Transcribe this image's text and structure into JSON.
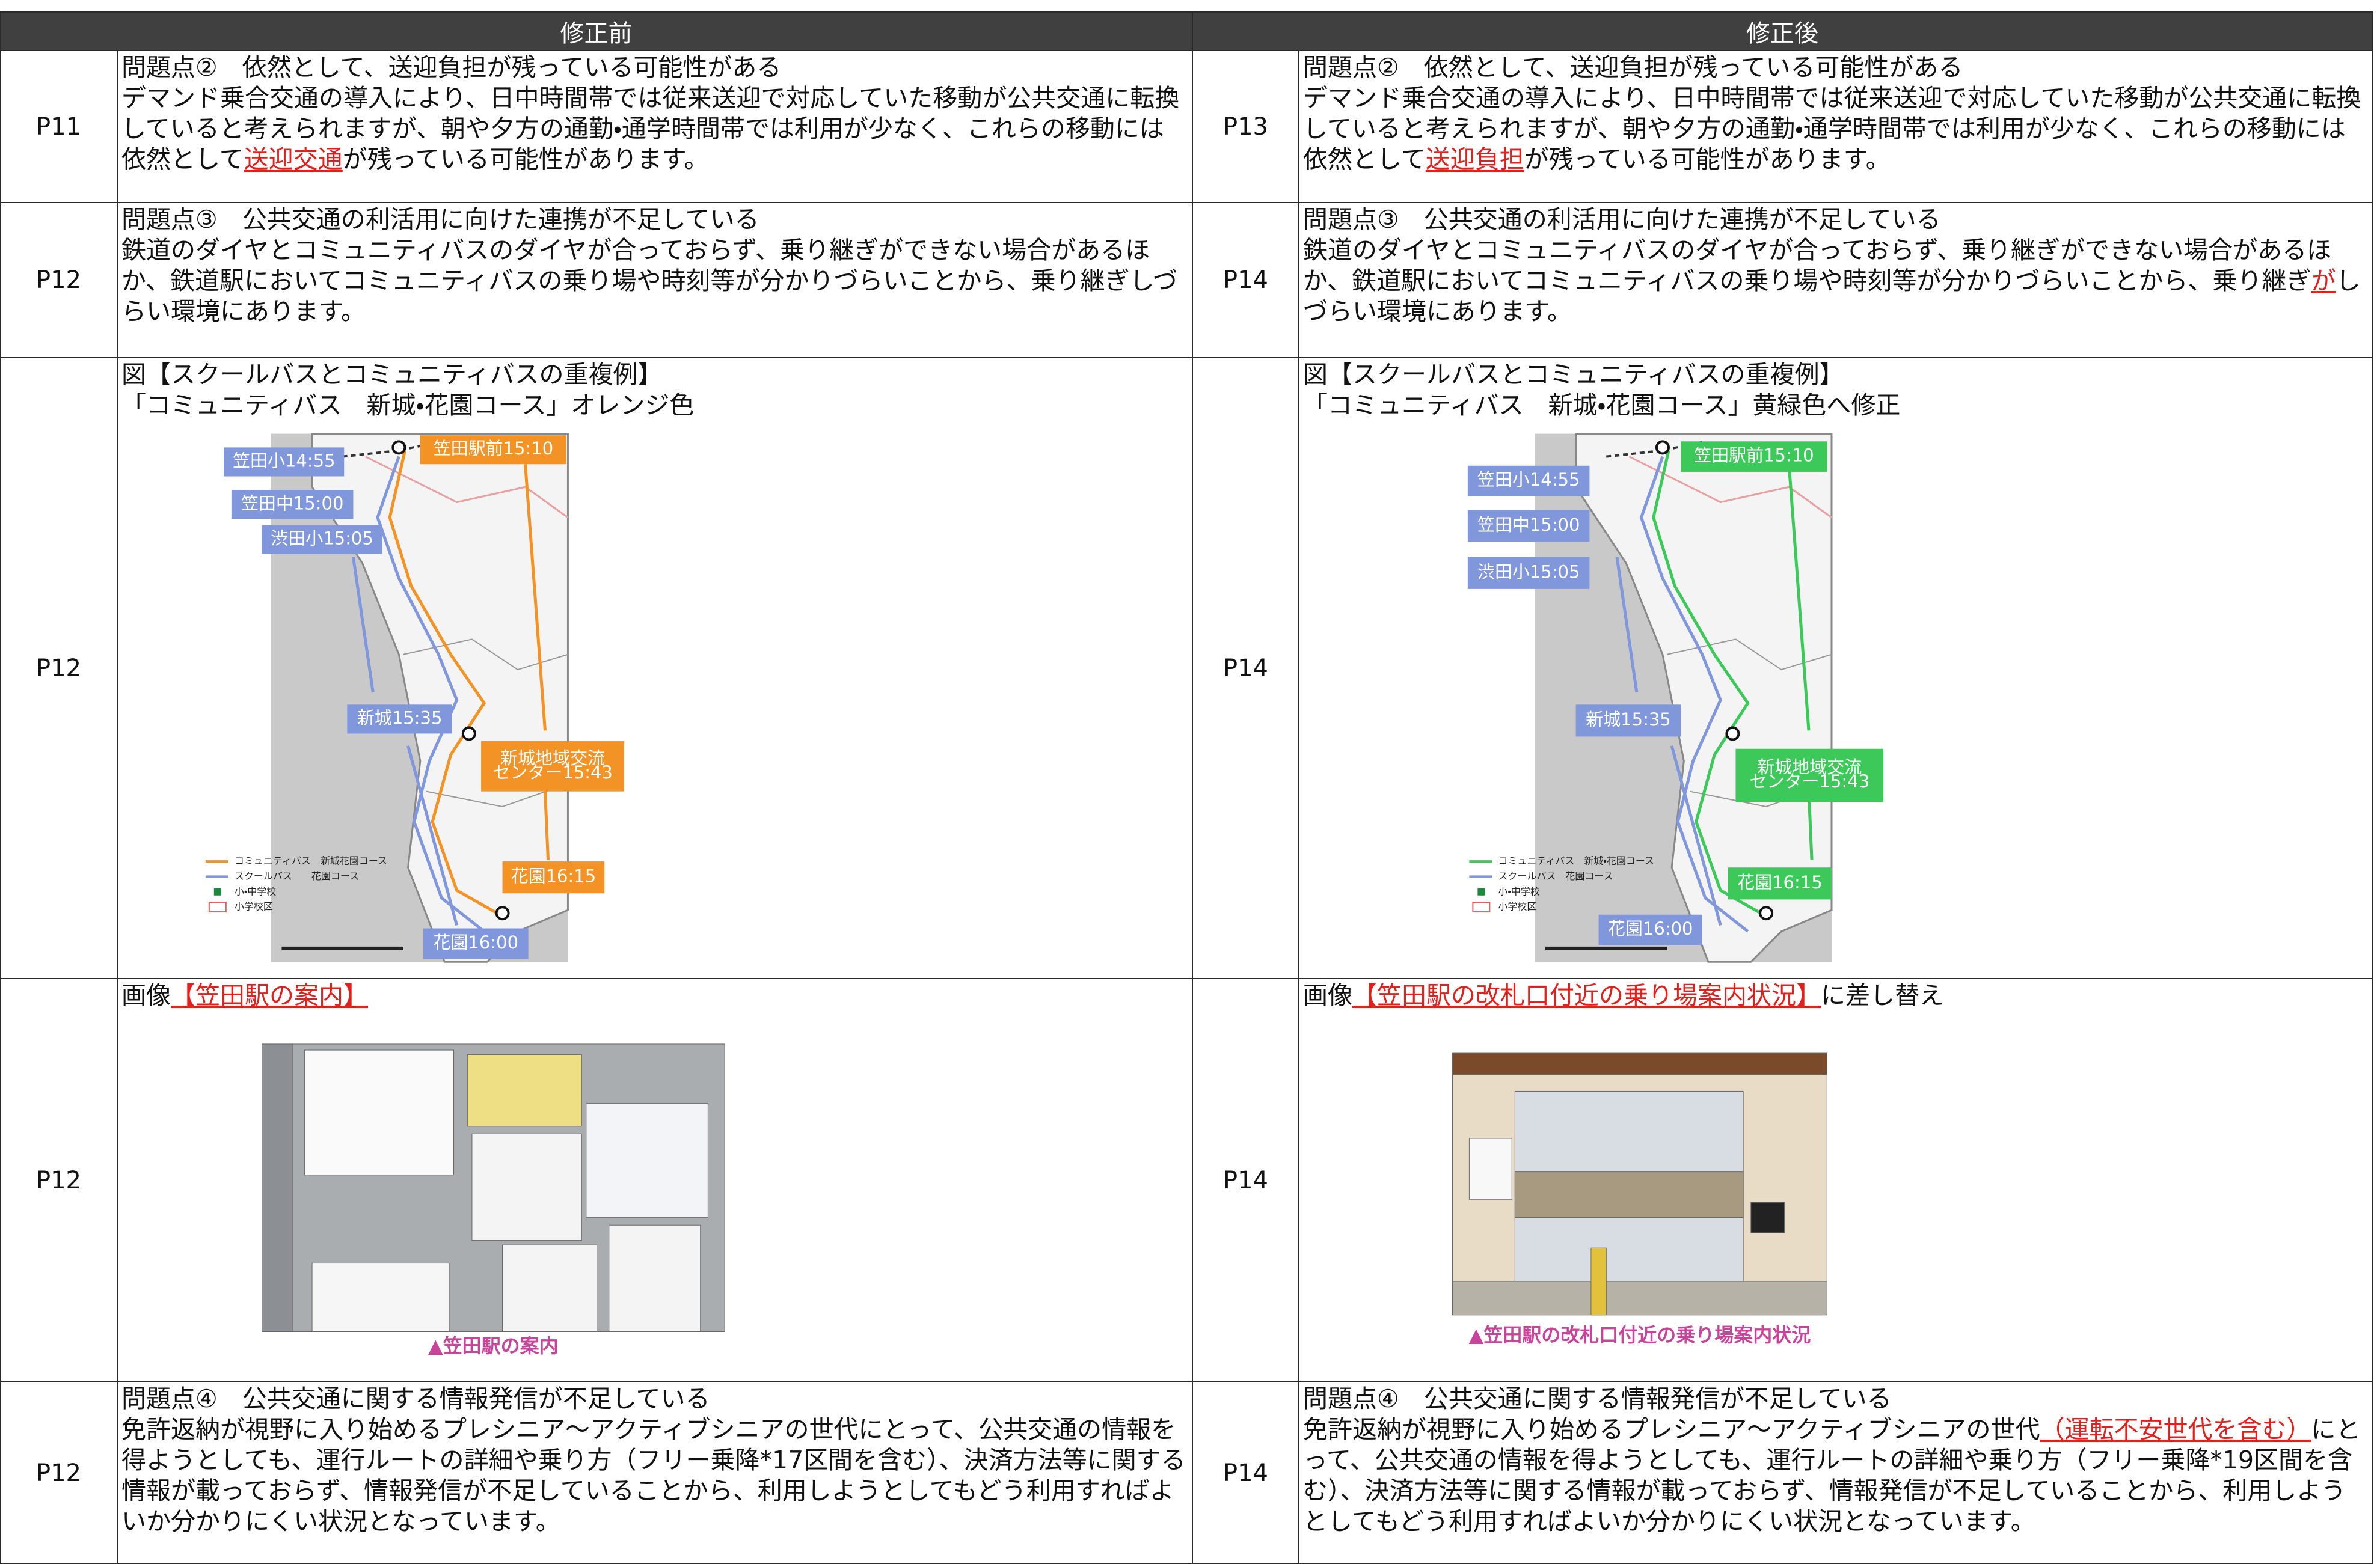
{
  "header": [
    "修正前",
    "修正後"
  ],
  "rows": [
    {
      "before": {
        "page": "P11",
        "heading": "問題点②　依然として、送迎負担が残っている可能性がある",
        "body": [
          {
            "text": "デマンド乗合交通の導入により、日中時間帯では従来送迎で対応していた移動が公共交通に転換していると考えられますが、朝や夕方の通勤・通学時間帯では利用が少なく、これらの移動には依然として"
          },
          {
            "text": "送迎交通",
            "red": true
          },
          {
            "text": "が残っている可能性があります。"
          }
        ]
      },
      "after": {
        "page": "P13",
        "heading": "問題点②　依然として、送迎負担が残っている可能性がある",
        "body": [
          {
            "text": "デマンド乗合交通の導入により、日中時間帯では従来送迎で対応していた移動が公共交通に転換していると考えられますが、朝や夕方の通勤・通学時間帯では利用が少なく、これらの移動には依然として"
          },
          {
            "text": "送迎負担",
            "red": true
          },
          {
            "text": "が残っている可能性があります。"
          }
        ]
      }
    },
    {
      "before": {
        "page": "P12",
        "heading": "問題点③　公共交通の利活用に向けた連携が不足している",
        "body": [
          {
            "text": "鉄道のダイヤとコミュニティバスのダイヤが合っておらず、乗り継ぎができない場合があるほか、鉄道駅においてコミュニティバスの乗り場や時刻等が分かりづらいことから、乗り継ぎしづらい環境にあります。"
          }
        ]
      },
      "after": {
        "page": "P14",
        "heading": "問題点③　公共交通の利活用に向けた連携が不足している",
        "body": [
          {
            "text": "鉄道のダイヤとコミュニティバスのダイヤが合っておらず、乗り継ぎができない場合があるほか、鉄道駅においてコミュニティバスの乗り場や時刻等が分かりづらいことから、乗り継ぎ"
          },
          {
            "text": "が",
            "red": true
          },
          {
            "text": "しづらい環境にあります。"
          }
        ]
      }
    },
    {
      "before": {
        "page": "P12",
        "lines": [
          "図【スクールバスとコミュニティバスの重複例】",
          "「コミュニティバス　新城・花園コース」オレンジ色"
        ],
        "map": {
          "route_color": "#f39325",
          "school_color": "#8097dc",
          "labels": [
            {
              "text": [
                "笠田小14:55"
              ],
              "kind": "school"
            },
            {
              "text": [
                "笠田中15:00"
              ],
              "kind": "school"
            },
            {
              "text": [
                "渋田小15:05"
              ],
              "kind": "school"
            },
            {
              "text": [
                "笠田駅前15:10"
              ],
              "kind": "route"
            },
            {
              "text": [
                "新城15:35"
              ],
              "kind": "school"
            },
            {
              "text": [
                "新城地域交流",
                "センター15:43"
              ],
              "kind": "route"
            },
            {
              "text": [
                "花園16:15"
              ],
              "kind": "route"
            },
            {
              "text": [
                "花園16:00"
              ],
              "kind": "school"
            }
          ],
          "legend": [
            "コミュニティバス　新城花園コース",
            "スクールバス　　花園コース",
            "小・中学校",
            "小学校区"
          ]
        }
      },
      "after": {
        "page": "P14",
        "lines": [
          "図【スクールバスとコミュニティバスの重複例】",
          "「コミュニティバス　新城・花園コース」黄緑色へ修正"
        ],
        "map": {
          "route_color": "#3dc95a",
          "school_color": "#8097dc",
          "labels": [
            {
              "text": [
                "笠田駅前15:10"
              ],
              "kind": "route"
            },
            {
              "text": [
                "笠田小14:55"
              ],
              "kind": "school"
            },
            {
              "text": [
                "笠田中15:00"
              ],
              "kind": "school"
            },
            {
              "text": [
                "渋田小15:05"
              ],
              "kind": "school"
            },
            {
              "text": [
                "新城15:35"
              ],
              "kind": "school"
            },
            {
              "text": [
                "新城地域交流",
                "センター15:43"
              ],
              "kind": "route"
            },
            {
              "text": [
                "花園16:15"
              ],
              "kind": "route"
            },
            {
              "text": [
                "花園16:00"
              ],
              "kind": "school"
            }
          ],
          "legend": [
            "コミュニティバス　新城・花園コース",
            "スクールバス　花園コース",
            "小・中学校",
            "小学校区"
          ]
        }
      }
    },
    {
      "before": {
        "page": "P12",
        "caption_line": [
          {
            "text": "画像"
          },
          {
            "text": "【笠田駅の案内】",
            "red": true
          }
        ],
        "photo": {
          "caption": "▲笠田駅の案内"
        }
      },
      "after": {
        "page": "P14",
        "caption_line": [
          {
            "text": "画像"
          },
          {
            "text": "【笠田駅の改札口付近の乗り場案内状況】",
            "red": true
          },
          {
            "text": "に差し替え"
          }
        ],
        "photo": {
          "caption": "▲笠田駅の改札口付近の乗り場案内状況"
        }
      }
    },
    {
      "before": {
        "page": "P12",
        "heading": "問題点④　公共交通に関する情報発信が不足している",
        "body": [
          {
            "text": "免許返納が視野に入り始めるプレシニア～アクティブシニアの世代にとって、公共交通の情報を得ようとしても、運行ルートの詳細や乗り方（フリー乗降*17区間を含む）、決済方法等に関する情報が載っておらず、情報発信が不足していることから、利用しようとしてもどう利用すればよいか分かりにくい状況となっています。"
          }
        ]
      },
      "after": {
        "page": "P14",
        "heading": "問題点④　公共交通に関する情報発信が不足している",
        "body": [
          {
            "text": "免許返納が視野に入り始めるプレシニア～アクティブシニアの世代"
          },
          {
            "text": "（運転不安世代を含む）",
            "red": true
          },
          {
            "text": "にとって、公共交通の情報を得ようとしても、運行ルートの詳細や乗り方（フリー乗降*19区間を含む）、決済方法等に関する情報が載っておらず、情報発信が不足していることから、利用しようとしてもどう利用すればよいか分かりにくい状況となっています。"
          }
        ]
      }
    }
  ]
}
